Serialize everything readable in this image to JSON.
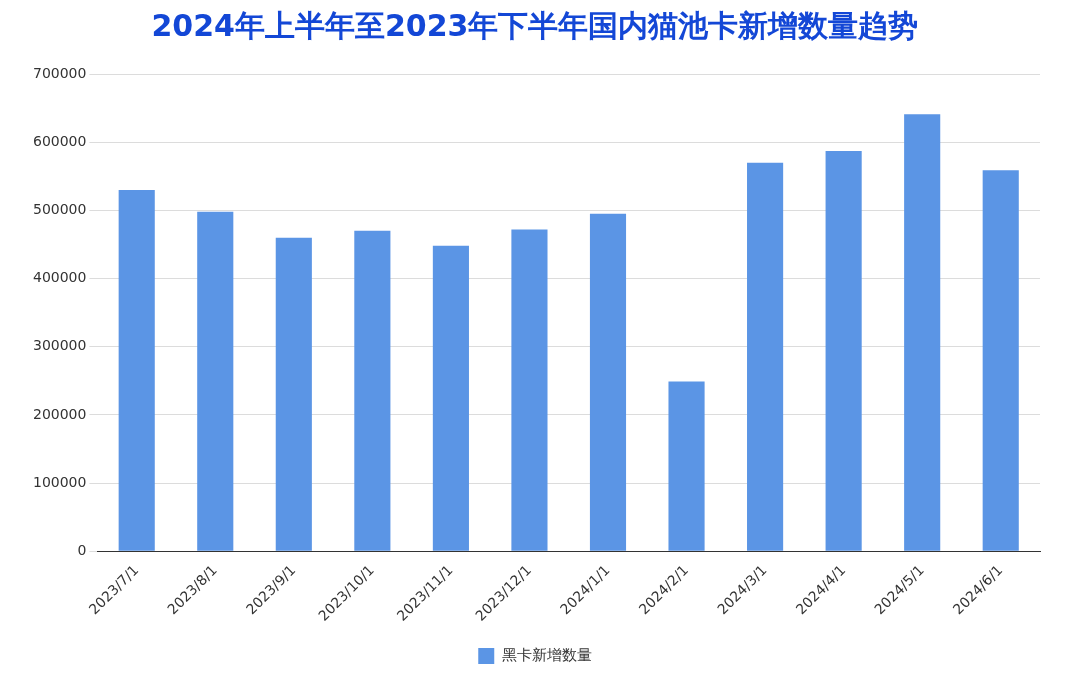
{
  "chart_data": {
    "type": "bar",
    "title": "2024年上半年至2023年下半年国内猫池卡新增数量趋势",
    "categories": [
      "2023/7/1",
      "2023/8/1",
      "2023/9/1",
      "2023/10/1",
      "2023/11/1",
      "2023/12/1",
      "2024/1/1",
      "2024/2/1",
      "2024/3/1",
      "2024/4/1",
      "2024/5/1",
      "2024/6/1"
    ],
    "series": [
      {
        "name": "黑卡新增数量",
        "color": "#5b95e5",
        "values": [
          530000,
          498000,
          460000,
          470000,
          448000,
          472000,
          495000,
          249000,
          570000,
          587000,
          641000,
          559000
        ]
      }
    ],
    "ylim": [
      0,
      700000
    ],
    "yticks": [
      0,
      100000,
      200000,
      300000,
      400000,
      500000,
      600000,
      700000
    ],
    "grid": "y",
    "legend": "bottom"
  }
}
